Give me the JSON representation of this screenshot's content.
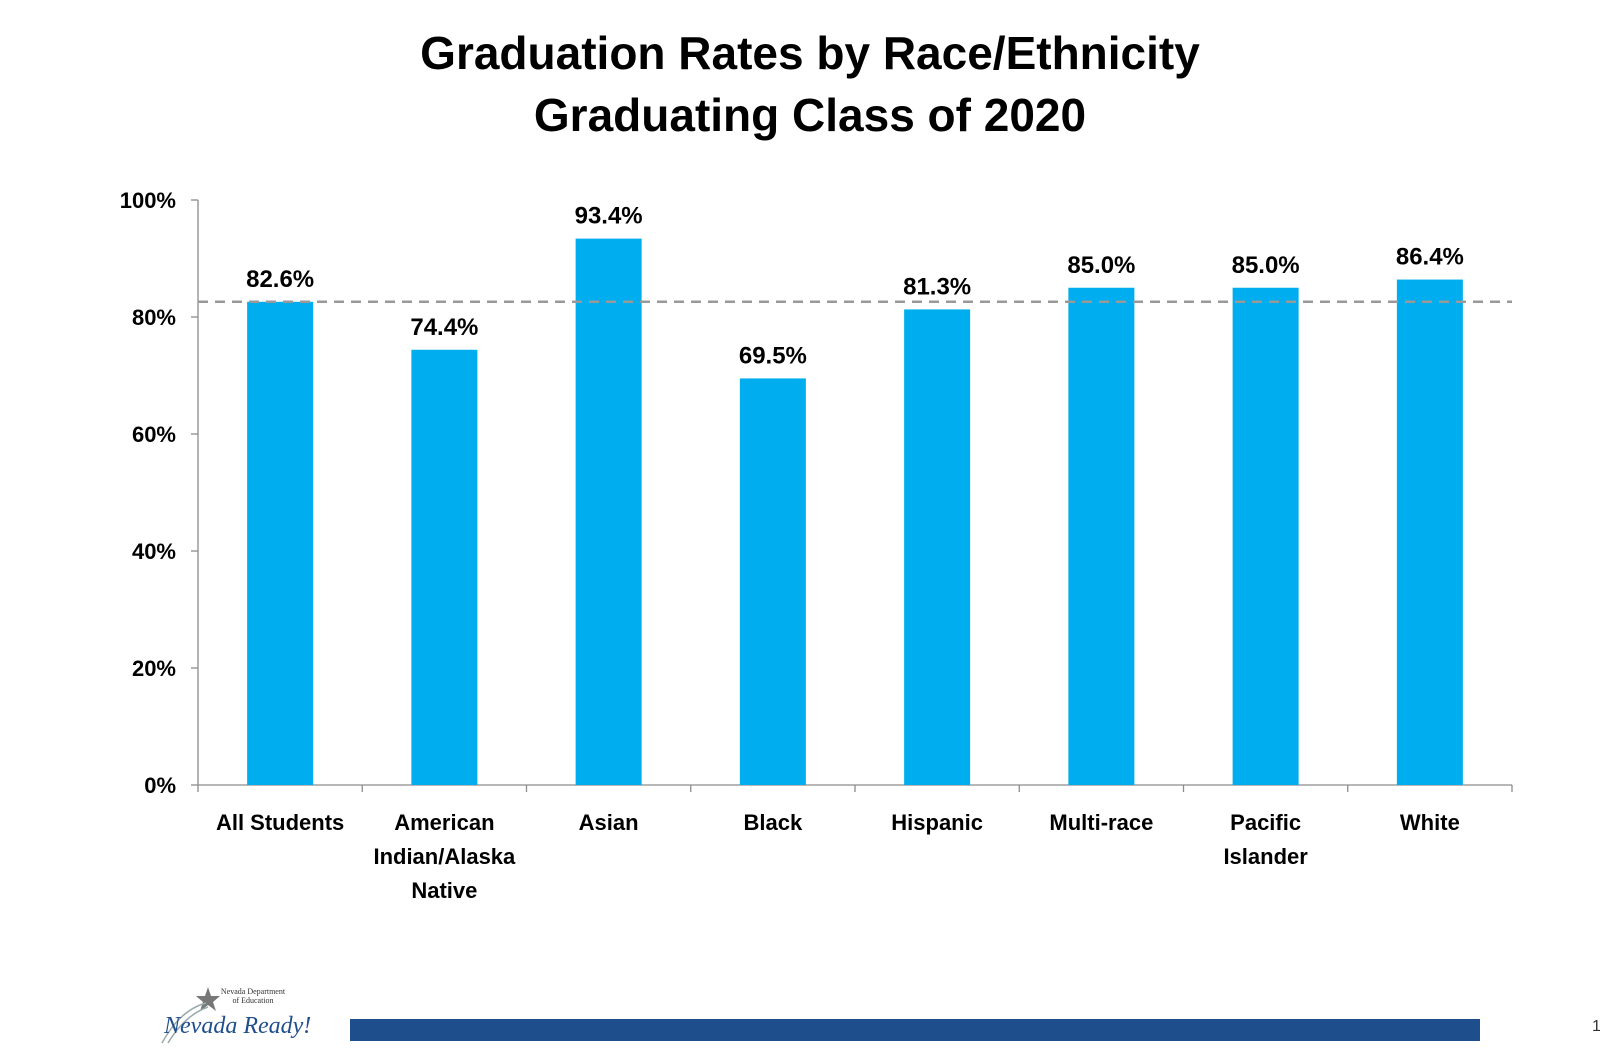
{
  "title_line1": "Graduation Rates by Race/Ethnicity",
  "title_line2": "Graduating Class of 2020",
  "chart_data": {
    "type": "bar",
    "title": "Graduation Rates by Race/Ethnicity Graduating Class of 2020",
    "categories": [
      [
        "All Students"
      ],
      [
        "American",
        "Indian/Alaska",
        "Native"
      ],
      [
        "Asian"
      ],
      [
        "Black"
      ],
      [
        "Hispanic"
      ],
      [
        "Multi-race"
      ],
      [
        "Pacific",
        "Islander"
      ],
      [
        "White"
      ]
    ],
    "values": [
      82.6,
      74.4,
      93.4,
      69.5,
      81.3,
      85.0,
      85.0,
      86.4
    ],
    "data_labels": [
      "82.6%",
      "74.4%",
      "93.4%",
      "69.5%",
      "81.3%",
      "85.0%",
      "85.0%",
      "86.4%"
    ],
    "yticks": [
      "0%",
      "20%",
      "40%",
      "60%",
      "80%",
      "100%"
    ],
    "ylim": [
      0,
      100
    ],
    "reference_line": 82.6,
    "bar_color": "#00AEEF",
    "reference_line_color": "#999999",
    "xlabel": "",
    "ylabel": ""
  },
  "footer": {
    "logo_org": "Nevada Department of Education",
    "logo_text": "Nevada Ready!",
    "page_number": "1",
    "bar_color": "#1F4E8C"
  }
}
